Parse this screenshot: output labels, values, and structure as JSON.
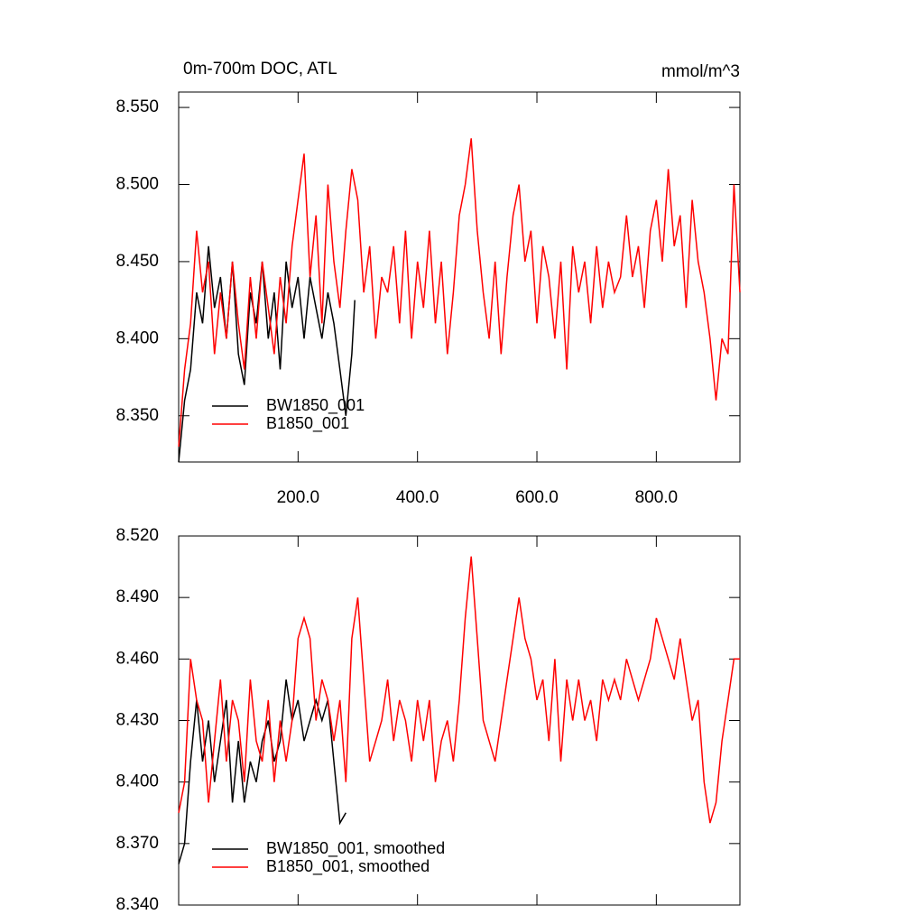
{
  "chart_data": [
    {
      "type": "line",
      "title": "0m-700m DOC, ATL",
      "units": "mmol/m^3",
      "xlim": [
        0,
        940
      ],
      "xticks": [
        {
          "value": 200,
          "label": "200.0"
        },
        {
          "value": 400,
          "label": "400.0"
        },
        {
          "value": 600,
          "label": "600.0"
        },
        {
          "value": 800,
          "label": "800.0"
        }
      ],
      "ylim": [
        8.32,
        8.56
      ],
      "yticks": [
        {
          "value": 8.35,
          "label": "8.350"
        },
        {
          "value": 8.4,
          "label": "8.400"
        },
        {
          "value": 8.45,
          "label": "8.450"
        },
        {
          "value": 8.5,
          "label": "8.500"
        },
        {
          "value": 8.55,
          "label": "8.550"
        }
      ],
      "legend": "lower-left",
      "series": [
        {
          "name": "BW1850_001",
          "color": "#000000",
          "x": [
            0,
            10,
            20,
            30,
            40,
            50,
            60,
            70,
            80,
            90,
            100,
            110,
            120,
            130,
            140,
            150,
            160,
            170,
            180,
            190,
            200,
            210,
            220,
            230,
            240,
            250,
            260,
            270,
            280,
            290,
            295
          ],
          "values": [
            8.32,
            8.36,
            8.38,
            8.43,
            8.41,
            8.46,
            8.42,
            8.44,
            8.4,
            8.45,
            8.39,
            8.37,
            8.43,
            8.41,
            8.45,
            8.4,
            8.43,
            8.38,
            8.45,
            8.42,
            8.44,
            8.4,
            8.44,
            8.42,
            8.4,
            8.43,
            8.41,
            8.38,
            8.35,
            8.39,
            8.425
          ]
        },
        {
          "name": "B1850_001",
          "color": "#ff0000",
          "x": [
            0,
            10,
            20,
            30,
            40,
            50,
            60,
            70,
            80,
            90,
            100,
            110,
            120,
            130,
            140,
            150,
            160,
            170,
            180,
            190,
            200,
            210,
            220,
            230,
            240,
            250,
            260,
            270,
            280,
            290,
            300,
            310,
            320,
            330,
            340,
            350,
            360,
            370,
            380,
            390,
            400,
            410,
            420,
            430,
            440,
            450,
            460,
            470,
            480,
            490,
            500,
            510,
            520,
            530,
            540,
            550,
            560,
            570,
            580,
            590,
            600,
            610,
            620,
            630,
            640,
            650,
            660,
            670,
            680,
            690,
            700,
            710,
            720,
            730,
            740,
            750,
            760,
            770,
            780,
            790,
            800,
            810,
            820,
            830,
            840,
            850,
            860,
            870,
            880,
            890,
            900,
            910,
            920,
            930,
            940
          ],
          "values": [
            8.33,
            8.38,
            8.41,
            8.47,
            8.43,
            8.45,
            8.39,
            8.43,
            8.4,
            8.45,
            8.41,
            8.38,
            8.44,
            8.4,
            8.45,
            8.42,
            8.39,
            8.44,
            8.41,
            8.46,
            8.49,
            8.52,
            8.44,
            8.48,
            8.41,
            8.5,
            8.45,
            8.42,
            8.47,
            8.51,
            8.49,
            8.43,
            8.46,
            8.4,
            8.44,
            8.43,
            8.46,
            8.41,
            8.47,
            8.4,
            8.45,
            8.42,
            8.47,
            8.41,
            8.45,
            8.39,
            8.43,
            8.48,
            8.5,
            8.53,
            8.47,
            8.43,
            8.4,
            8.45,
            8.39,
            8.44,
            8.48,
            8.5,
            8.45,
            8.47,
            8.41,
            8.46,
            8.44,
            8.4,
            8.45,
            8.38,
            8.46,
            8.43,
            8.45,
            8.41,
            8.46,
            8.42,
            8.45,
            8.43,
            8.44,
            8.48,
            8.44,
            8.46,
            8.42,
            8.47,
            8.49,
            8.45,
            8.51,
            8.46,
            8.48,
            8.42,
            8.49,
            8.45,
            8.43,
            8.4,
            8.36,
            8.4,
            8.39,
            8.5,
            8.43
          ]
        }
      ]
    },
    {
      "type": "line",
      "xlim": [
        0,
        940
      ],
      "xticks": [
        200,
        400,
        600,
        800
      ],
      "ylim": [
        8.34,
        8.52
      ],
      "yticks": [
        {
          "value": 8.34,
          "label": "8.340"
        },
        {
          "value": 8.37,
          "label": "8.370"
        },
        {
          "value": 8.4,
          "label": "8.400"
        },
        {
          "value": 8.43,
          "label": "8.430"
        },
        {
          "value": 8.46,
          "label": "8.460"
        },
        {
          "value": 8.49,
          "label": "8.490"
        },
        {
          "value": 8.52,
          "label": "8.520"
        }
      ],
      "legend": "lower-left",
      "series": [
        {
          "name": "BW1850_001, smoothed",
          "color": "#000000",
          "x": [
            0,
            10,
            20,
            30,
            40,
            50,
            60,
            70,
            80,
            90,
            100,
            110,
            120,
            130,
            140,
            150,
            160,
            170,
            180,
            190,
            200,
            210,
            220,
            230,
            240,
            250,
            260,
            270,
            280
          ],
          "values": [
            8.36,
            8.37,
            8.41,
            8.44,
            8.41,
            8.43,
            8.4,
            8.42,
            8.44,
            8.39,
            8.42,
            8.39,
            8.41,
            8.4,
            8.42,
            8.43,
            8.41,
            8.42,
            8.45,
            8.43,
            8.44,
            8.42,
            8.43,
            8.44,
            8.43,
            8.44,
            8.41,
            8.38,
            8.385
          ]
        },
        {
          "name": "B1850_001, smoothed",
          "color": "#ff0000",
          "x": [
            0,
            10,
            20,
            30,
            40,
            50,
            60,
            70,
            80,
            90,
            100,
            110,
            120,
            130,
            140,
            150,
            160,
            170,
            180,
            190,
            200,
            210,
            220,
            230,
            240,
            250,
            260,
            270,
            280,
            290,
            300,
            310,
            320,
            330,
            340,
            350,
            360,
            370,
            380,
            390,
            400,
            410,
            420,
            430,
            440,
            450,
            460,
            470,
            480,
            490,
            500,
            510,
            520,
            530,
            540,
            550,
            560,
            570,
            580,
            590,
            600,
            610,
            620,
            630,
            640,
            650,
            660,
            670,
            680,
            690,
            700,
            710,
            720,
            730,
            740,
            750,
            760,
            770,
            780,
            790,
            800,
            810,
            820,
            830,
            840,
            850,
            860,
            870,
            880,
            890,
            900,
            910,
            920,
            930,
            940
          ],
          "values": [
            8.385,
            8.4,
            8.46,
            8.44,
            8.43,
            8.39,
            8.42,
            8.45,
            8.41,
            8.44,
            8.43,
            8.4,
            8.45,
            8.42,
            8.41,
            8.44,
            8.4,
            8.43,
            8.41,
            8.43,
            8.47,
            8.48,
            8.47,
            8.43,
            8.45,
            8.44,
            8.42,
            8.44,
            8.4,
            8.47,
            8.49,
            8.45,
            8.41,
            8.42,
            8.43,
            8.45,
            8.42,
            8.44,
            8.43,
            8.41,
            8.44,
            8.42,
            8.44,
            8.4,
            8.42,
            8.43,
            8.41,
            8.44,
            8.48,
            8.51,
            8.47,
            8.43,
            8.42,
            8.41,
            8.43,
            8.45,
            8.47,
            8.49,
            8.47,
            8.46,
            8.44,
            8.45,
            8.42,
            8.46,
            8.41,
            8.45,
            8.43,
            8.45,
            8.43,
            8.44,
            8.42,
            8.45,
            8.44,
            8.45,
            8.44,
            8.46,
            8.45,
            8.44,
            8.45,
            8.46,
            8.48,
            8.47,
            8.46,
            8.45,
            8.47,
            8.45,
            8.43,
            8.44,
            8.4,
            8.38,
            8.39,
            8.42,
            8.44,
            8.46,
            8.46
          ]
        }
      ]
    }
  ]
}
